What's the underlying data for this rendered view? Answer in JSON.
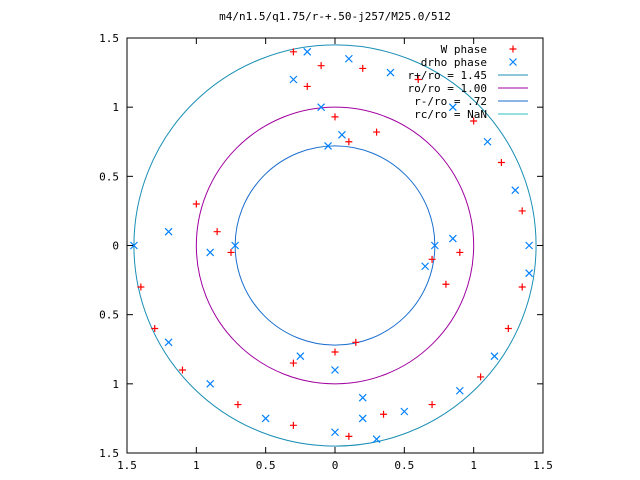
{
  "chart_data": {
    "type": "scatter",
    "title": "m4/n1.5/q1.75/r-+.50-j257/M25.0/512",
    "xlim": [
      -1.5,
      1.5
    ],
    "ylim": [
      -1.5,
      1.5
    ],
    "xticks": [
      -1.5,
      -1,
      -0.5,
      0,
      0.5,
      1,
      1.5
    ],
    "yticks": [
      -1.5,
      -1,
      -0.5,
      0,
      0.5,
      1,
      1.5
    ],
    "xtick_labels": [
      "1.5",
      "1",
      "0.5",
      "0",
      "0.5",
      "1",
      "1.5"
    ],
    "ytick_labels": [
      "1.5",
      "1",
      "0.5",
      "0",
      "0.5",
      "1",
      "1.5"
    ],
    "grid": false,
    "legend_position": "top-right",
    "series": [
      {
        "name": "W phase",
        "marker": "plus",
        "color": "#ff0000",
        "points": [
          [
            -0.3,
            1.4
          ],
          [
            -0.1,
            1.3
          ],
          [
            0.2,
            1.28
          ],
          [
            0.6,
            1.2
          ],
          [
            1.0,
            0.9
          ],
          [
            1.2,
            0.6
          ],
          [
            1.35,
            0.25
          ],
          [
            -0.2,
            1.15
          ],
          [
            0.0,
            0.93
          ],
          [
            0.3,
            0.82
          ],
          [
            0.1,
            0.75
          ],
          [
            -1.0,
            0.3
          ],
          [
            -0.85,
            0.1
          ],
          [
            -0.75,
            -0.05
          ],
          [
            0.7,
            -0.1
          ],
          [
            0.8,
            -0.28
          ],
          [
            0.9,
            -0.05
          ],
          [
            -0.3,
            -0.85
          ],
          [
            0.0,
            -0.77
          ],
          [
            0.15,
            -0.7
          ],
          [
            -1.4,
            -0.3
          ],
          [
            -1.3,
            -0.6
          ],
          [
            -1.1,
            -0.9
          ],
          [
            -0.7,
            -1.15
          ],
          [
            -0.3,
            -1.3
          ],
          [
            0.1,
            -1.38
          ],
          [
            1.35,
            -0.3
          ],
          [
            1.25,
            -0.6
          ],
          [
            1.05,
            -0.95
          ],
          [
            0.7,
            -1.15
          ],
          [
            0.35,
            -1.22
          ]
        ]
      },
      {
        "name": "drho phase",
        "marker": "x",
        "color": "#0080ff",
        "points": [
          [
            -0.2,
            1.4
          ],
          [
            0.1,
            1.35
          ],
          [
            0.4,
            1.25
          ],
          [
            0.85,
            1.0
          ],
          [
            1.1,
            0.75
          ],
          [
            1.3,
            0.4
          ],
          [
            1.4,
            0.0
          ],
          [
            -0.3,
            1.2
          ],
          [
            -0.1,
            1.0
          ],
          [
            0.05,
            0.8
          ],
          [
            -0.05,
            0.72
          ],
          [
            -1.2,
            0.1
          ],
          [
            -0.9,
            -0.05
          ],
          [
            -0.72,
            0.0
          ],
          [
            0.72,
            0.0
          ],
          [
            0.85,
            0.05
          ],
          [
            0.65,
            -0.15
          ],
          [
            -0.25,
            -0.8
          ],
          [
            0.0,
            -0.9
          ],
          [
            0.2,
            -1.1
          ],
          [
            -1.45,
            0.0
          ],
          [
            -1.2,
            -0.7
          ],
          [
            -0.9,
            -1.0
          ],
          [
            -0.5,
            -1.25
          ],
          [
            0.0,
            -1.35
          ],
          [
            0.3,
            -1.4
          ],
          [
            1.4,
            -0.2
          ],
          [
            1.15,
            -0.8
          ],
          [
            0.9,
            -1.05
          ],
          [
            0.5,
            -1.2
          ],
          [
            0.2,
            -1.25
          ]
        ]
      }
    ],
    "circles": [
      {
        "name": "r+/ro = 1.45",
        "r": 1.45,
        "color": "#1a8fb5"
      },
      {
        "name": "ro/ro = 1.00",
        "r": 1.0,
        "color": "#a000a0"
      },
      {
        "name": "r-/ro = .72",
        "r": 0.72,
        "color": "#1a6ecf"
      },
      {
        "name": "rc/ro = NaN",
        "r": null,
        "color": "#30c0c0"
      }
    ]
  }
}
